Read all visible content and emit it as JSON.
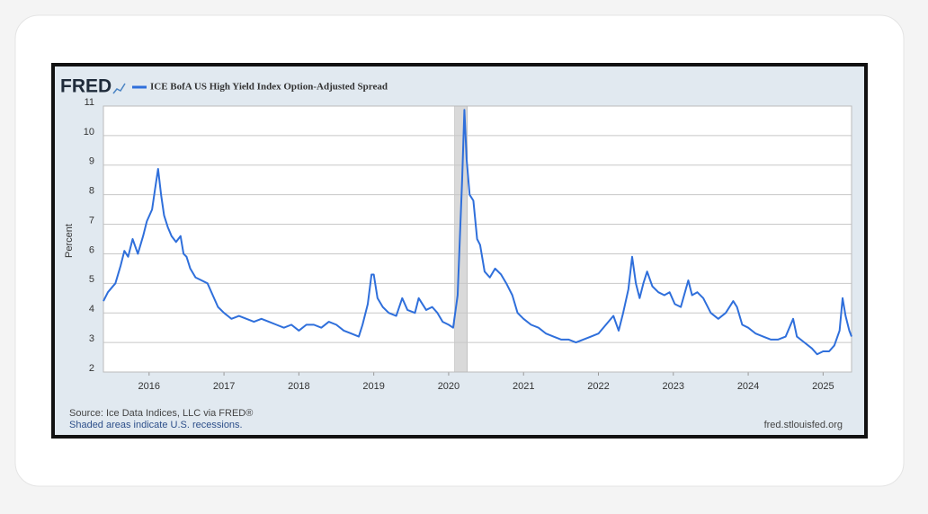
{
  "chart_data": {
    "type": "line",
    "logo": "FRED",
    "y_label": "Percent",
    "source": "Source: Ice Data Indices, LLC via FRED®",
    "recession_note": "Shaded areas indicate U.S. recessions.",
    "site": "fred.stlouisfed.org",
    "xlim": [
      2015.39,
      2025.38
    ],
    "xticks": [
      2016,
      2017,
      2018,
      2019,
      2020,
      2021,
      2022,
      2023,
      2024,
      2025
    ],
    "ylim": [
      2,
      11
    ],
    "yticks": [
      2,
      3,
      4,
      5,
      6,
      7,
      8,
      9,
      10,
      11
    ],
    "grid": true,
    "recessions": [
      [
        2020.08,
        2020.25
      ]
    ],
    "x": [
      2015.39,
      2015.45,
      2015.55,
      2015.62,
      2015.67,
      2015.72,
      2015.78,
      2015.85,
      2015.92,
      2015.97,
      2016.04,
      2016.08,
      2016.12,
      2016.16,
      2016.2,
      2016.25,
      2016.3,
      2016.36,
      2016.42,
      2016.46,
      2016.5,
      2016.55,
      2016.62,
      2016.7,
      2016.78,
      2016.85,
      2016.92,
      2017.0,
      2017.1,
      2017.2,
      2017.3,
      2017.4,
      2017.5,
      2017.6,
      2017.7,
      2017.8,
      2017.9,
      2018.0,
      2018.1,
      2018.2,
      2018.3,
      2018.4,
      2018.5,
      2018.6,
      2018.7,
      2018.8,
      2018.85,
      2018.92,
      2018.97,
      2019.0,
      2019.05,
      2019.12,
      2019.2,
      2019.3,
      2019.38,
      2019.45,
      2019.55,
      2019.6,
      2019.7,
      2019.78,
      2019.85,
      2019.92,
      2020.0,
      2020.06,
      2020.12,
      2020.18,
      2020.21,
      2020.24,
      2020.28,
      2020.33,
      2020.38,
      2020.42,
      2020.48,
      2020.55,
      2020.62,
      2020.7,
      2020.77,
      2020.85,
      2020.92,
      2021.0,
      2021.1,
      2021.2,
      2021.3,
      2021.4,
      2021.5,
      2021.6,
      2021.7,
      2021.8,
      2021.9,
      2022.0,
      2022.1,
      2022.2,
      2022.27,
      2022.33,
      2022.4,
      2022.45,
      2022.5,
      2022.55,
      2022.6,
      2022.65,
      2022.72,
      2022.8,
      2022.88,
      2022.95,
      2023.02,
      2023.1,
      2023.2,
      2023.25,
      2023.32,
      2023.4,
      2023.5,
      2023.6,
      2023.7,
      2023.8,
      2023.85,
      2023.92,
      2024.0,
      2024.1,
      2024.2,
      2024.3,
      2024.4,
      2024.5,
      2024.6,
      2024.65,
      2024.75,
      2024.85,
      2024.92,
      2025.0,
      2025.08,
      2025.15,
      2025.22,
      2025.26,
      2025.3,
      2025.35,
      2025.38
    ],
    "series": [
      {
        "name": "ICE BofA US High Yield Index Option-Adjusted Spread",
        "color": "#2f6fdb",
        "values": [
          4.4,
          4.7,
          5.0,
          5.6,
          6.1,
          5.9,
          6.5,
          6.0,
          6.6,
          7.1,
          7.5,
          8.2,
          8.87,
          8.0,
          7.3,
          6.9,
          6.6,
          6.4,
          6.6,
          6.0,
          5.9,
          5.5,
          5.2,
          5.1,
          5.0,
          4.6,
          4.2,
          4.0,
          3.8,
          3.9,
          3.8,
          3.7,
          3.8,
          3.7,
          3.6,
          3.5,
          3.6,
          3.4,
          3.6,
          3.6,
          3.5,
          3.7,
          3.6,
          3.4,
          3.3,
          3.2,
          3.6,
          4.3,
          5.3,
          5.3,
          4.5,
          4.2,
          4.0,
          3.9,
          4.5,
          4.1,
          4.0,
          4.5,
          4.1,
          4.2,
          4.0,
          3.7,
          3.6,
          3.5,
          4.6,
          8.5,
          10.87,
          9.2,
          8.0,
          7.8,
          6.5,
          6.3,
          5.4,
          5.2,
          5.5,
          5.3,
          5.0,
          4.6,
          4.0,
          3.8,
          3.6,
          3.5,
          3.3,
          3.2,
          3.1,
          3.1,
          3.0,
          3.1,
          3.2,
          3.3,
          3.6,
          3.9,
          3.4,
          4.0,
          4.8,
          5.9,
          5.0,
          4.5,
          5.0,
          5.4,
          4.9,
          4.7,
          4.6,
          4.7,
          4.3,
          4.2,
          5.1,
          4.6,
          4.7,
          4.5,
          4.0,
          3.8,
          4.0,
          4.4,
          4.2,
          3.6,
          3.5,
          3.3,
          3.2,
          3.1,
          3.1,
          3.2,
          3.8,
          3.2,
          3.0,
          2.8,
          2.6,
          2.7,
          2.7,
          2.9,
          3.4,
          4.5,
          3.9,
          3.4,
          3.2
        ]
      }
    ]
  }
}
